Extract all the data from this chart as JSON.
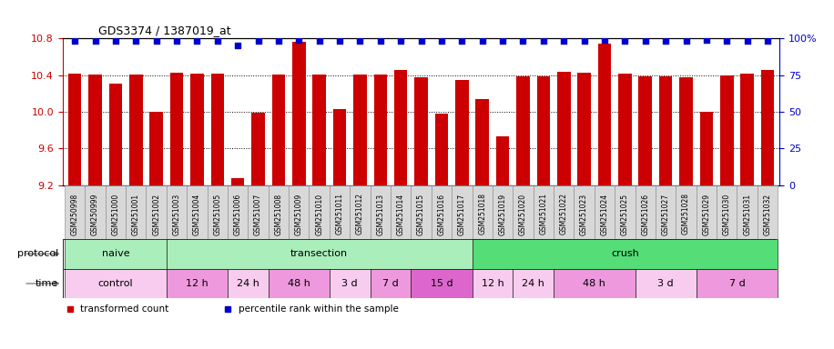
{
  "title": "GDS3374 / 1387019_at",
  "samples": [
    "GSM250998",
    "GSM250999",
    "GSM251000",
    "GSM251001",
    "GSM251002",
    "GSM251003",
    "GSM251004",
    "GSM251005",
    "GSM251006",
    "GSM251007",
    "GSM251008",
    "GSM251009",
    "GSM251010",
    "GSM251011",
    "GSM251012",
    "GSM251013",
    "GSM251014",
    "GSM251015",
    "GSM251016",
    "GSM251017",
    "GSM251018",
    "GSM251019",
    "GSM251020",
    "GSM251021",
    "GSM251022",
    "GSM251023",
    "GSM251024",
    "GSM251025",
    "GSM251026",
    "GSM251027",
    "GSM251028",
    "GSM251029",
    "GSM251030",
    "GSM251031",
    "GSM251032"
  ],
  "bar_values": [
    10.42,
    10.41,
    10.31,
    10.41,
    10.0,
    10.43,
    10.42,
    10.42,
    9.27,
    9.99,
    10.41,
    10.76,
    10.41,
    10.03,
    10.41,
    10.41,
    10.46,
    10.38,
    9.98,
    10.35,
    10.14,
    9.73,
    10.39,
    10.39,
    10.44,
    10.43,
    10.74,
    10.42,
    10.39,
    10.39,
    10.38,
    10.0,
    10.4,
    10.42,
    10.46
  ],
  "percentile_values": [
    98,
    98,
    98,
    98,
    98,
    98,
    98,
    98,
    95,
    98,
    98,
    99,
    98,
    98,
    98,
    98,
    98,
    98,
    98,
    98,
    98,
    98,
    98,
    98,
    98,
    98,
    99,
    98,
    98,
    98,
    98,
    99,
    98,
    98,
    98
  ],
  "bar_color": "#cc0000",
  "dot_color": "#0000cc",
  "ylim_left": [
    9.2,
    10.8
  ],
  "ylim_right": [
    0,
    100
  ],
  "yticks_left": [
    9.2,
    9.6,
    10.0,
    10.4,
    10.8
  ],
  "yticks_right": [
    0,
    25,
    50,
    75,
    100
  ],
  "protocol_groups": [
    {
      "label": "naive",
      "start": 0,
      "end": 4,
      "color": "#aaeebb"
    },
    {
      "label": "transection",
      "start": 5,
      "end": 19,
      "color": "#aaeebb"
    },
    {
      "label": "crush",
      "start": 20,
      "end": 34,
      "color": "#55dd77"
    }
  ],
  "time_groups": [
    {
      "label": "control",
      "start": 0,
      "end": 4,
      "color": "#f8ccee"
    },
    {
      "label": "12 h",
      "start": 5,
      "end": 7,
      "color": "#ee99dd"
    },
    {
      "label": "24 h",
      "start": 8,
      "end": 9,
      "color": "#f8ccee"
    },
    {
      "label": "48 h",
      "start": 10,
      "end": 12,
      "color": "#ee99dd"
    },
    {
      "label": "3 d",
      "start": 13,
      "end": 14,
      "color": "#f8ccee"
    },
    {
      "label": "7 d",
      "start": 15,
      "end": 16,
      "color": "#ee99dd"
    },
    {
      "label": "15 d",
      "start": 17,
      "end": 19,
      "color": "#dd66cc"
    },
    {
      "label": "12 h",
      "start": 20,
      "end": 21,
      "color": "#f8ccee"
    },
    {
      "label": "24 h",
      "start": 22,
      "end": 23,
      "color": "#f8ccee"
    },
    {
      "label": "48 h",
      "start": 24,
      "end": 27,
      "color": "#ee99dd"
    },
    {
      "label": "3 d",
      "start": 28,
      "end": 30,
      "color": "#f8ccee"
    },
    {
      "label": "7 d",
      "start": 31,
      "end": 34,
      "color": "#ee99dd"
    }
  ],
  "sample_box_color": "#d8d8d8",
  "ylabel_left_color": "#cc0000",
  "ylabel_right_color": "#0000cc",
  "bar_width": 0.65
}
